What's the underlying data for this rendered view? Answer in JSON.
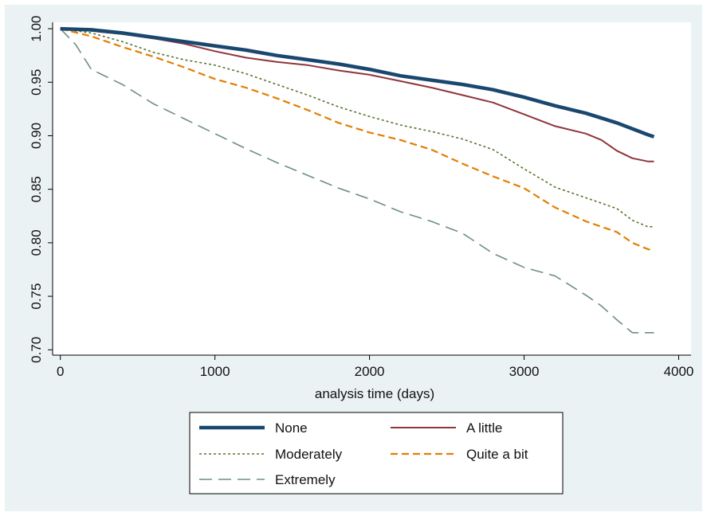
{
  "chart_data": {
    "type": "line",
    "title": "",
    "xlabel": "analysis time (days)",
    "ylabel": "",
    "xlim": [
      -50,
      4080
    ],
    "ylim": [
      0.695,
      1.006
    ],
    "xticks": [
      0,
      1000,
      2000,
      3000,
      4000
    ],
    "xtick_labels": [
      "0",
      "1000",
      "2000",
      "3000",
      "4000"
    ],
    "yticks": [
      0.7,
      0.75,
      0.8,
      0.85,
      0.9,
      0.95,
      1.0
    ],
    "ytick_labels": [
      "0.70",
      "0.75",
      "0.80",
      "0.85",
      "0.90",
      "0.95",
      "1.00"
    ],
    "grid": false,
    "legend_position": "bottom",
    "series": [
      {
        "name": "None",
        "color": "#1a476f",
        "dash": "solid",
        "x": [
          0,
          200,
          400,
          600,
          800,
          1000,
          1200,
          1400,
          1600,
          1800,
          2000,
          2200,
          2400,
          2600,
          2800,
          3000,
          3200,
          3400,
          3600,
          3800,
          3840
        ],
        "y": [
          1.0,
          0.999,
          0.996,
          0.992,
          0.988,
          0.984,
          0.98,
          0.975,
          0.971,
          0.967,
          0.962,
          0.956,
          0.952,
          0.948,
          0.943,
          0.936,
          0.928,
          0.921,
          0.912,
          0.901,
          0.899
        ]
      },
      {
        "name": "A little",
        "color": "#90353b",
        "dash": "solid",
        "x": [
          0,
          200,
          400,
          600,
          800,
          1000,
          1200,
          1400,
          1600,
          1800,
          2000,
          2200,
          2400,
          2600,
          2800,
          3000,
          3200,
          3400,
          3500,
          3600,
          3700,
          3800,
          3840
        ],
        "y": [
          1.0,
          0.998,
          0.995,
          0.991,
          0.986,
          0.979,
          0.973,
          0.969,
          0.966,
          0.961,
          0.957,
          0.951,
          0.945,
          0.938,
          0.931,
          0.92,
          0.909,
          0.902,
          0.896,
          0.886,
          0.879,
          0.876,
          0.876
        ]
      },
      {
        "name": "Moderately",
        "color": "#55752f",
        "dash": "dotted",
        "x": [
          0,
          200,
          400,
          600,
          800,
          1000,
          1200,
          1400,
          1600,
          1800,
          2000,
          2200,
          2400,
          2600,
          2800,
          3000,
          3200,
          3400,
          3600,
          3700,
          3800,
          3840
        ],
        "y": [
          1.0,
          0.996,
          0.988,
          0.978,
          0.971,
          0.966,
          0.958,
          0.948,
          0.938,
          0.927,
          0.918,
          0.91,
          0.904,
          0.897,
          0.887,
          0.869,
          0.852,
          0.842,
          0.832,
          0.821,
          0.815,
          0.815
        ]
      },
      {
        "name": "Quite a bit",
        "color": "#e37e00",
        "dash": "dashed",
        "x": [
          0,
          200,
          400,
          600,
          800,
          1000,
          1200,
          1400,
          1600,
          1800,
          2000,
          2200,
          2400,
          2600,
          2800,
          3000,
          3200,
          3400,
          3600,
          3700,
          3800,
          3840
        ],
        "y": [
          1.0,
          0.993,
          0.983,
          0.974,
          0.964,
          0.953,
          0.945,
          0.935,
          0.924,
          0.912,
          0.903,
          0.896,
          0.887,
          0.874,
          0.862,
          0.851,
          0.833,
          0.82,
          0.81,
          0.8,
          0.794,
          0.793
        ]
      },
      {
        "name": "Extremely",
        "color": "#6e8e84",
        "dash": "longdash",
        "x": [
          0,
          100,
          200,
          400,
          600,
          800,
          1000,
          1200,
          1400,
          1600,
          1800,
          2000,
          2200,
          2400,
          2600,
          2800,
          3000,
          3200,
          3400,
          3500,
          3600,
          3700,
          3800,
          3840
        ],
        "y": [
          1.0,
          0.985,
          0.962,
          0.948,
          0.93,
          0.916,
          0.902,
          0.888,
          0.875,
          0.863,
          0.851,
          0.841,
          0.829,
          0.82,
          0.809,
          0.79,
          0.777,
          0.769,
          0.751,
          0.741,
          0.728,
          0.716,
          0.716,
          0.716
        ]
      }
    ]
  }
}
